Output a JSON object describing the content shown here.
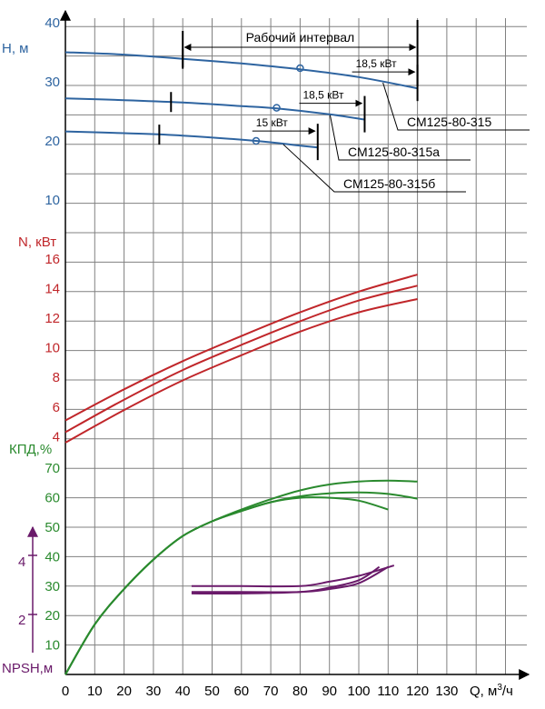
{
  "chart_data": {
    "type": "line",
    "x_axis": {
      "label": "Q, м³/ч",
      "label_main": "Q, м",
      "label_sup": "3",
      "label_tail": "/ч",
      "range": [
        0,
        130
      ],
      "ticks": [
        "0",
        "10",
        "20",
        "30",
        "40",
        "50",
        "60",
        "70",
        "80",
        "90",
        "100",
        "110",
        "120",
        "130"
      ]
    },
    "head_panel": {
      "axis_label": "Н, м",
      "ticks": [
        10,
        20,
        30,
        40
      ],
      "color": "#2e64a0",
      "working_interval_label": "Рабочий интервал",
      "working_interval": [
        40,
        120
      ],
      "series": [
        {
          "name": "СМ125-80-315",
          "x": [
            0,
            20,
            40,
            60,
            80,
            100,
            120
          ],
          "y": [
            35.0,
            34.6,
            33.9,
            33.1,
            32.1,
            30.8,
            28.9
          ],
          "duty_point": [
            80,
            32.3
          ],
          "limit_x": 40,
          "motor_label": "18,5 кВт",
          "motor_limit_x": 120
        },
        {
          "name": "СМ125-80-315а",
          "x": [
            0,
            20,
            40,
            60,
            72,
            90,
            102
          ],
          "y": [
            27.2,
            26.9,
            26.5,
            25.9,
            25.5,
            24.5,
            23.6
          ],
          "duty_point": [
            72,
            25.6
          ],
          "limit_x": 36,
          "motor_label": "18,5 кВт",
          "motor_limit_x": 102
        },
        {
          "name": "СМ125-80-315б",
          "x": [
            0,
            20,
            40,
            65,
            80,
            86
          ],
          "y": [
            21.6,
            21.3,
            20.9,
            20.0,
            19.2,
            18.9
          ],
          "duty_point": [
            65,
            20.0
          ],
          "limit_x": 32,
          "motor_label": "15 кВт",
          "motor_limit_x": 86
        }
      ]
    },
    "power_panel": {
      "axis_label": "N, кВт",
      "ticks": [
        4,
        6,
        8,
        10,
        12,
        14,
        16
      ],
      "color": "#c0262a",
      "series": [
        {
          "name": "СМ125-80-315",
          "x": [
            0,
            20,
            40,
            60,
            80,
            100,
            120
          ],
          "y": [
            5.1,
            7.2,
            9.1,
            10.8,
            12.4,
            13.8,
            14.95
          ]
        },
        {
          "name": "СМ125-80-315а",
          "x": [
            0,
            20,
            40,
            60,
            80,
            100,
            120
          ],
          "y": [
            4.3,
            6.5,
            8.5,
            10.2,
            11.8,
            13.2,
            14.2
          ]
        },
        {
          "name": "СМ125-80-315б",
          "x": [
            0,
            20,
            40,
            60,
            80,
            100,
            120
          ],
          "y": [
            3.6,
            5.8,
            7.8,
            9.5,
            11.1,
            12.4,
            13.3
          ]
        }
      ]
    },
    "efficiency_panel": {
      "axis_label": "КПД,%",
      "ticks": [
        10,
        20,
        30,
        40,
        50,
        60,
        70
      ],
      "color": "#2a8a2e",
      "series": [
        {
          "name": "СМ125-80-315",
          "x": [
            0,
            10,
            20,
            30,
            40,
            50,
            60,
            70,
            80,
            90,
            100,
            110,
            120
          ],
          "y": [
            0,
            17,
            29,
            39,
            47,
            52,
            56,
            59.5,
            62.5,
            64.5,
            65.5,
            65.8,
            65.5
          ]
        },
        {
          "name": "СМ125-80-315а",
          "x": [
            0,
            10,
            20,
            30,
            40,
            50,
            60,
            70,
            80,
            90,
            100,
            110,
            120
          ],
          "y": [
            0,
            17,
            29,
            39,
            47,
            52,
            55.5,
            58.5,
            60.5,
            61.5,
            61.8,
            61.3,
            59.7
          ]
        },
        {
          "name": "СМ125-80-315б",
          "x": [
            0,
            10,
            20,
            30,
            40,
            50,
            60,
            70,
            80,
            90,
            100,
            110
          ],
          "y": [
            0,
            17,
            29,
            39,
            47,
            52,
            55.5,
            58.5,
            60,
            60,
            59,
            56
          ]
        }
      ]
    },
    "npsh_panel": {
      "axis_label": "NPSH,м",
      "ticks": [
        "2",
        "4"
      ],
      "color": "#6a1a6a",
      "series": [
        {
          "name": "СМ125-80-315",
          "x": [
            43,
            60,
            80,
            90,
            100,
            112
          ],
          "y_eff_scale": [
            30,
            30,
            30,
            31.5,
            33.5,
            37
          ]
        },
        {
          "name": "СМ125-80-315а",
          "x": [
            43,
            60,
            80,
            90,
            100,
            110
          ],
          "y_eff_scale": [
            28,
            28,
            28,
            29,
            31,
            36.5
          ]
        },
        {
          "name": "СМ125-80-315б",
          "x": [
            43,
            60,
            80,
            90,
            100,
            107
          ],
          "y_eff_scale": [
            27.5,
            27.5,
            28,
            29.5,
            32,
            36.5
          ]
        }
      ]
    }
  }
}
